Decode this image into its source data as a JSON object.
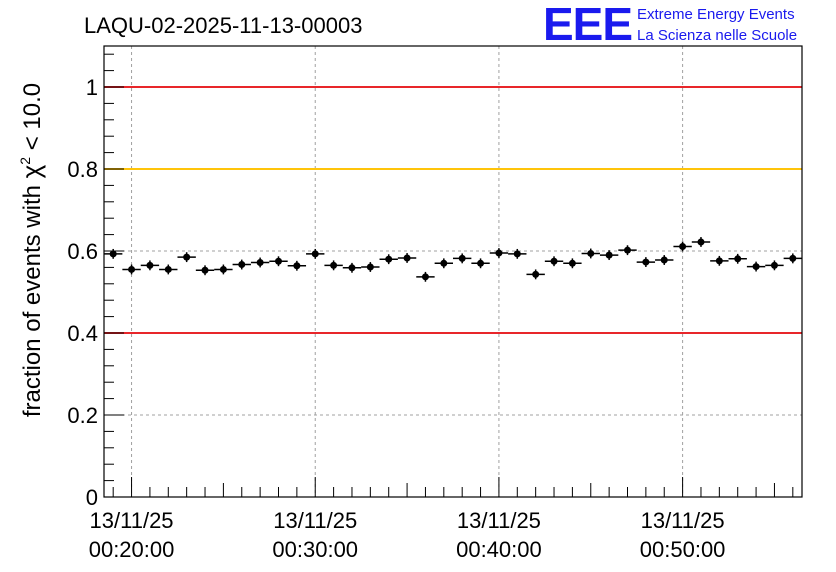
{
  "title": "LAQU-02-2025-11-13-00003",
  "logo": {
    "letters": "EEE",
    "line1": "Extreme Energy Events",
    "line2": "La Scienza nelle Scuole",
    "color": "#1a1aee"
  },
  "chart_data": {
    "type": "scatter",
    "title": "LAQU-02-2025-11-13-00003",
    "xlabel": "",
    "ylabel_prefix": "fraction of events with ",
    "ylabel_symbol": "χ",
    "ylabel_sup": "2",
    "ylabel_suffix": " < 10.0",
    "x_unit": "minutes after 00:00:00 on 13/11/25",
    "xlim": [
      18.5,
      56.5
    ],
    "ylim": [
      0,
      1.1
    ],
    "yticks": [
      0,
      0.2,
      0.4,
      0.6,
      0.8,
      1
    ],
    "ytick_labels": [
      "0",
      "0.2",
      "0.4",
      "0.6",
      "0.8",
      "1"
    ],
    "xticks": [
      {
        "x": 20,
        "date": "13/11/25",
        "time": "00:20:00"
      },
      {
        "x": 30,
        "date": "13/11/25",
        "time": "00:30:00"
      },
      {
        "x": 40,
        "date": "13/11/25",
        "time": "00:40:00"
      },
      {
        "x": 50,
        "date": "13/11/25",
        "time": "00:50:00"
      }
    ],
    "grid": true,
    "reference_lines": [
      {
        "y": 1.0,
        "color": "#e8262a"
      },
      {
        "y": 0.8,
        "color": "#ffc40a"
      },
      {
        "y": 0.4,
        "color": "#e8262a"
      }
    ],
    "bin_width": 1,
    "points": {
      "x": [
        19,
        20,
        21,
        22,
        23,
        24,
        25,
        26,
        27,
        28,
        29,
        30,
        31,
        32,
        33,
        34,
        35,
        36,
        37,
        38,
        39,
        40,
        41,
        42,
        43,
        44,
        45,
        46,
        47,
        48,
        49,
        50,
        51,
        52,
        53,
        54,
        55,
        56
      ],
      "y": [
        0.593,
        0.555,
        0.565,
        0.555,
        0.585,
        0.553,
        0.555,
        0.567,
        0.572,
        0.575,
        0.564,
        0.593,
        0.565,
        0.559,
        0.561,
        0.58,
        0.583,
        0.537,
        0.57,
        0.582,
        0.57,
        0.595,
        0.593,
        0.543,
        0.575,
        0.57,
        0.594,
        0.59,
        0.602,
        0.573,
        0.578,
        0.611,
        0.622,
        0.576,
        0.581,
        0.562,
        0.565,
        0.582
      ],
      "yerr": 0.012
    }
  }
}
